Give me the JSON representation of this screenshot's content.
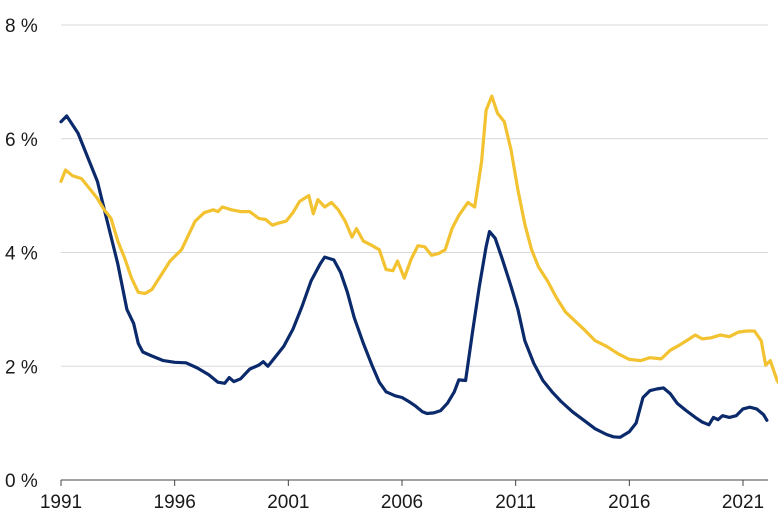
{
  "chart_data": {
    "type": "line",
    "title": "",
    "xlabel": "",
    "ylabel": "",
    "xlim": [
      1991.0,
      2021.6
    ],
    "ylim": [
      0,
      8
    ],
    "grid": "horizontal",
    "legend": "none",
    "x_ticks": [
      {
        "value": 1991,
        "label": "1991"
      },
      {
        "value": 1996,
        "label": "1996"
      },
      {
        "value": 2001,
        "label": "2001"
      },
      {
        "value": 2006,
        "label": "2006"
      },
      {
        "value": 2011,
        "label": "2011"
      },
      {
        "value": 2016,
        "label": "2016"
      },
      {
        "value": 2021,
        "label": "2021"
      }
    ],
    "y_ticks": [
      {
        "value": 0,
        "label": "0 %"
      },
      {
        "value": 2,
        "label": "2 %"
      },
      {
        "value": 4,
        "label": "4 %"
      },
      {
        "value": 6,
        "label": "6 %"
      },
      {
        "value": 8,
        "label": "8 %"
      }
    ],
    "series": [
      {
        "color": "#0b2a6b",
        "points": [
          [
            1991.0,
            6.3
          ],
          [
            1991.25,
            6.4
          ],
          [
            1991.75,
            6.1
          ],
          [
            1992.25,
            5.6
          ],
          [
            1992.6,
            5.25
          ],
          [
            1993.0,
            4.6
          ],
          [
            1993.5,
            3.8
          ],
          [
            1993.9,
            3.0
          ],
          [
            1994.2,
            2.75
          ],
          [
            1994.4,
            2.4
          ],
          [
            1994.6,
            2.25
          ],
          [
            1995.0,
            2.18
          ],
          [
            1995.5,
            2.1
          ],
          [
            1996.0,
            2.07
          ],
          [
            1996.5,
            2.06
          ],
          [
            1997.0,
            1.97
          ],
          [
            1997.5,
            1.85
          ],
          [
            1997.9,
            1.72
          ],
          [
            1998.2,
            1.7
          ],
          [
            1998.4,
            1.8
          ],
          [
            1998.6,
            1.73
          ],
          [
            1998.9,
            1.78
          ],
          [
            1999.3,
            1.95
          ],
          [
            1999.7,
            2.02
          ],
          [
            1999.9,
            2.08
          ],
          [
            2000.1,
            2.0
          ],
          [
            2000.4,
            2.15
          ],
          [
            2000.8,
            2.35
          ],
          [
            2001.2,
            2.65
          ],
          [
            2001.6,
            3.05
          ],
          [
            2002.0,
            3.5
          ],
          [
            2002.4,
            3.8
          ],
          [
            2002.6,
            3.92
          ],
          [
            2003.0,
            3.87
          ],
          [
            2003.3,
            3.65
          ],
          [
            2003.6,
            3.3
          ],
          [
            2003.9,
            2.85
          ],
          [
            2004.3,
            2.4
          ],
          [
            2004.7,
            2.0
          ],
          [
            2005.0,
            1.72
          ],
          [
            2005.3,
            1.55
          ],
          [
            2005.7,
            1.48
          ],
          [
            2006.0,
            1.45
          ],
          [
            2006.3,
            1.38
          ],
          [
            2006.6,
            1.3
          ],
          [
            2006.9,
            1.2
          ],
          [
            2007.1,
            1.17
          ],
          [
            2007.4,
            1.18
          ],
          [
            2007.7,
            1.22
          ],
          [
            2008.0,
            1.35
          ],
          [
            2008.3,
            1.55
          ],
          [
            2008.5,
            1.76
          ],
          [
            2008.8,
            1.75
          ],
          [
            2009.1,
            2.6
          ],
          [
            2009.4,
            3.4
          ],
          [
            2009.7,
            4.1
          ],
          [
            2009.85,
            4.37
          ],
          [
            2010.1,
            4.25
          ],
          [
            2010.4,
            3.9
          ],
          [
            2010.8,
            3.4
          ],
          [
            2011.1,
            3.0
          ],
          [
            2011.4,
            2.45
          ],
          [
            2011.8,
            2.05
          ],
          [
            2012.2,
            1.75
          ],
          [
            2012.6,
            1.55
          ],
          [
            2013.0,
            1.38
          ],
          [
            2013.5,
            1.2
          ],
          [
            2014.0,
            1.05
          ],
          [
            2014.5,
            0.9
          ],
          [
            2015.0,
            0.8
          ],
          [
            2015.3,
            0.76
          ],
          [
            2015.6,
            0.75
          ],
          [
            2016.0,
            0.85
          ],
          [
            2016.3,
            1.0
          ],
          [
            2016.6,
            1.45
          ],
          [
            2016.9,
            1.57
          ],
          [
            2017.2,
            1.6
          ],
          [
            2017.5,
            1.62
          ],
          [
            2017.8,
            1.52
          ],
          [
            2018.1,
            1.35
          ],
          [
            2018.5,
            1.22
          ],
          [
            2018.9,
            1.1
          ],
          [
            2019.2,
            1.02
          ],
          [
            2019.5,
            0.97
          ],
          [
            2019.7,
            1.1
          ],
          [
            2019.9,
            1.06
          ],
          [
            2020.1,
            1.13
          ],
          [
            2020.4,
            1.1
          ],
          [
            2020.7,
            1.13
          ],
          [
            2021.0,
            1.25
          ],
          [
            2021.3,
            1.28
          ],
          [
            2021.6,
            1.25
          ],
          [
            2021.9,
            1.15
          ],
          [
            2022.05,
            1.05
          ]
        ]
      },
      {
        "color": "#f2c230",
        "points": [
          [
            1991.0,
            5.25
          ],
          [
            1991.2,
            5.45
          ],
          [
            1991.5,
            5.35
          ],
          [
            1991.9,
            5.3
          ],
          [
            1992.3,
            5.1
          ],
          [
            1992.6,
            4.95
          ],
          [
            1992.9,
            4.75
          ],
          [
            1993.2,
            4.6
          ],
          [
            1993.5,
            4.2
          ],
          [
            1993.8,
            3.9
          ],
          [
            1994.1,
            3.55
          ],
          [
            1994.4,
            3.3
          ],
          [
            1994.7,
            3.28
          ],
          [
            1995.0,
            3.35
          ],
          [
            1995.4,
            3.6
          ],
          [
            1995.8,
            3.85
          ],
          [
            1996.3,
            4.05
          ],
          [
            1996.6,
            4.3
          ],
          [
            1996.9,
            4.55
          ],
          [
            1997.3,
            4.7
          ],
          [
            1997.7,
            4.75
          ],
          [
            1997.9,
            4.72
          ],
          [
            1998.1,
            4.8
          ],
          [
            1998.5,
            4.75
          ],
          [
            1998.9,
            4.72
          ],
          [
            1999.3,
            4.72
          ],
          [
            1999.7,
            4.6
          ],
          [
            2000.0,
            4.58
          ],
          [
            2000.3,
            4.48
          ],
          [
            2000.6,
            4.52
          ],
          [
            2000.9,
            4.55
          ],
          [
            2001.2,
            4.7
          ],
          [
            2001.5,
            4.9
          ],
          [
            2001.9,
            5.0
          ],
          [
            2002.1,
            4.68
          ],
          [
            2002.3,
            4.93
          ],
          [
            2002.6,
            4.8
          ],
          [
            2002.9,
            4.88
          ],
          [
            2003.2,
            4.75
          ],
          [
            2003.5,
            4.55
          ],
          [
            2003.8,
            4.27
          ],
          [
            2004.0,
            4.42
          ],
          [
            2004.3,
            4.2
          ],
          [
            2004.7,
            4.12
          ],
          [
            2005.0,
            4.05
          ],
          [
            2005.3,
            3.7
          ],
          [
            2005.6,
            3.68
          ],
          [
            2005.8,
            3.85
          ],
          [
            2006.1,
            3.55
          ],
          [
            2006.4,
            3.88
          ],
          [
            2006.7,
            4.12
          ],
          [
            2007.0,
            4.1
          ],
          [
            2007.3,
            3.95
          ],
          [
            2007.6,
            3.98
          ],
          [
            2007.9,
            4.05
          ],
          [
            2008.2,
            4.42
          ],
          [
            2008.5,
            4.65
          ],
          [
            2008.9,
            4.88
          ],
          [
            2009.2,
            4.8
          ],
          [
            2009.5,
            5.6
          ],
          [
            2009.7,
            6.5
          ],
          [
            2009.95,
            6.75
          ],
          [
            2010.2,
            6.45
          ],
          [
            2010.5,
            6.3
          ],
          [
            2010.8,
            5.8
          ],
          [
            2011.1,
            5.1
          ],
          [
            2011.4,
            4.5
          ],
          [
            2011.7,
            4.05
          ],
          [
            2012.0,
            3.75
          ],
          [
            2012.4,
            3.5
          ],
          [
            2012.8,
            3.2
          ],
          [
            2013.2,
            2.95
          ],
          [
            2013.6,
            2.8
          ],
          [
            2014.0,
            2.65
          ],
          [
            2014.5,
            2.45
          ],
          [
            2015.0,
            2.35
          ],
          [
            2015.5,
            2.22
          ],
          [
            2016.0,
            2.12
          ],
          [
            2016.5,
            2.1
          ],
          [
            2016.9,
            2.15
          ],
          [
            2017.4,
            2.13
          ],
          [
            2017.8,
            2.28
          ],
          [
            2018.2,
            2.37
          ],
          [
            2018.6,
            2.47
          ],
          [
            2018.9,
            2.55
          ],
          [
            2019.2,
            2.48
          ],
          [
            2019.6,
            2.5
          ],
          [
            2020.0,
            2.55
          ],
          [
            2020.4,
            2.52
          ],
          [
            2020.8,
            2.6
          ],
          [
            2021.2,
            2.62
          ],
          [
            2021.5,
            2.62
          ],
          [
            2021.8,
            2.45
          ],
          [
            2022.0,
            2.02
          ],
          [
            2022.2,
            2.1
          ],
          [
            2022.5,
            1.75
          ],
          [
            2022.75,
            1.6
          ]
        ]
      }
    ]
  }
}
